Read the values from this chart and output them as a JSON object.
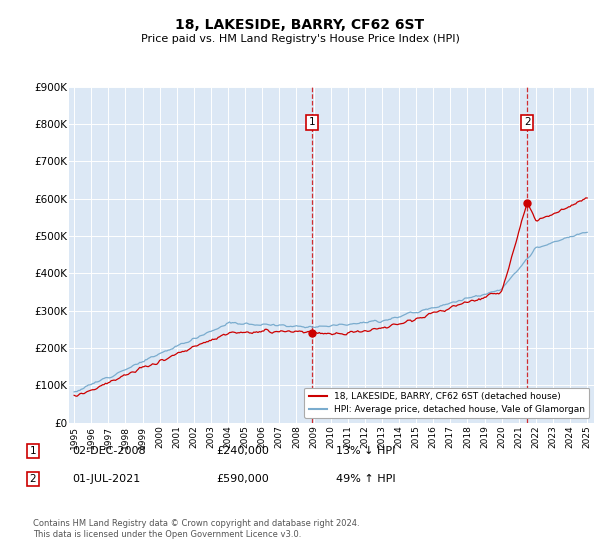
{
  "title": "18, LAKESIDE, BARRY, CF62 6ST",
  "subtitle": "Price paid vs. HM Land Registry's House Price Index (HPI)",
  "legend_line1": "18, LAKESIDE, BARRY, CF62 6ST (detached house)",
  "legend_line2": "HPI: Average price, detached house, Vale of Glamorgan",
  "annotation1_label": "1",
  "annotation1_date": "02-DEC-2008",
  "annotation1_price": "£240,000",
  "annotation1_hpi": "13% ↓ HPI",
  "annotation2_label": "2",
  "annotation2_date": "01-JUL-2021",
  "annotation2_price": "£590,000",
  "annotation2_hpi": "49% ↑ HPI",
  "footer": "Contains HM Land Registry data © Crown copyright and database right 2024.\nThis data is licensed under the Open Government Licence v3.0.",
  "red_color": "#cc0000",
  "blue_color": "#7aacce",
  "bg_color": "#dce8f5",
  "annotation_box_color": "#cc0000",
  "ylim": [
    0,
    900000
  ],
  "yticks": [
    0,
    100000,
    200000,
    300000,
    400000,
    500000,
    600000,
    700000,
    800000,
    900000
  ],
  "sale1_x": 2008.917,
  "sale1_y": 240000,
  "sale2_x": 2021.5,
  "sale2_y": 590000,
  "xmin": 1994.7,
  "xmax": 2025.4
}
